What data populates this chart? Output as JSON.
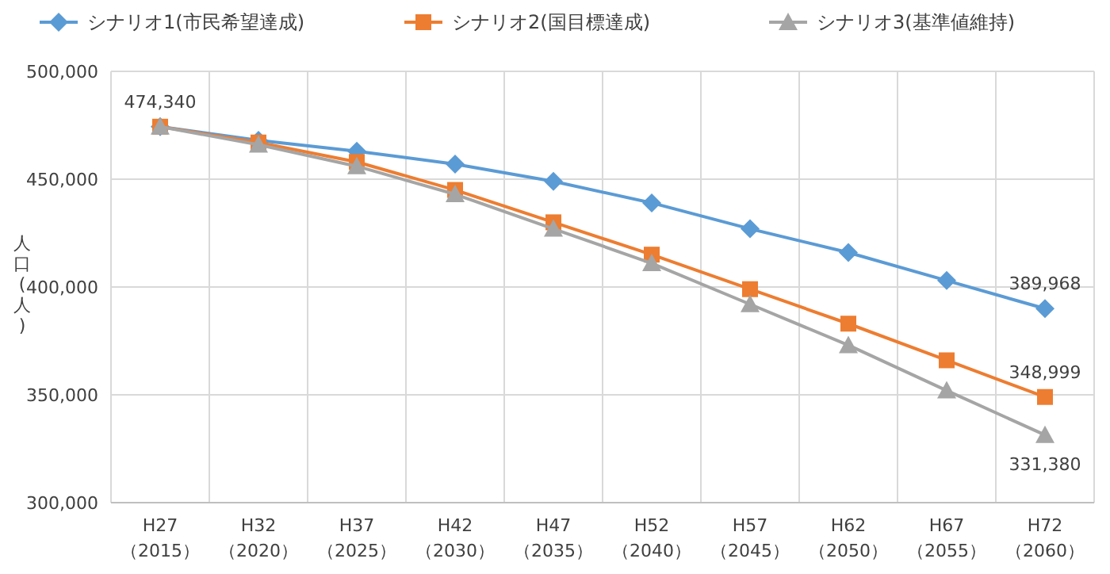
{
  "chart_data": {
    "type": "line",
    "ylabel": "人口(人)",
    "categories": [
      "H27\n（2015）",
      "H32\n（2020）",
      "H37\n（2025）",
      "H42\n（2030）",
      "H47\n（2035）",
      "H52\n（2040）",
      "H57\n（2045）",
      "H62\n（2050）",
      "H67\n（2055）",
      "H72\n（2060）"
    ],
    "series": [
      {
        "name": "シナリオ1(市民希望達成)",
        "color": "#5b9bd5",
        "marker": "diamond",
        "values": [
          474340,
          468000,
          463000,
          457000,
          449000,
          439000,
          427000,
          416000,
          403000,
          389968
        ],
        "value_labels": [
          "474,340",
          null,
          null,
          null,
          null,
          null,
          null,
          null,
          null,
          "389,968"
        ]
      },
      {
        "name": "シナリオ2(国目標達成)",
        "color": "#ed7d31",
        "marker": "square",
        "values": [
          474340,
          467000,
          458000,
          445000,
          430000,
          415000,
          399000,
          383000,
          366000,
          348999
        ],
        "value_labels": [
          null,
          null,
          null,
          null,
          null,
          null,
          null,
          null,
          null,
          "348,999"
        ]
      },
      {
        "name": "シナリオ3(基準値維持)",
        "color": "#a5a5a5",
        "marker": "triangle",
        "values": [
          474340,
          466000,
          456000,
          443000,
          427000,
          411000,
          392000,
          373000,
          352000,
          331380
        ],
        "value_labels": [
          null,
          null,
          null,
          null,
          null,
          null,
          null,
          null,
          null,
          "331,380"
        ]
      }
    ],
    "ylim": [
      300000,
      500000
    ],
    "yticks": [
      {
        "value": 300000,
        "label": "300,000"
      },
      {
        "value": 350000,
        "label": "350,000"
      },
      {
        "value": 400000,
        "label": "400,000"
      },
      {
        "value": 450000,
        "label": "450,000"
      },
      {
        "value": 500000,
        "label": "500,000"
      }
    ],
    "grid": true,
    "legend": "top"
  }
}
